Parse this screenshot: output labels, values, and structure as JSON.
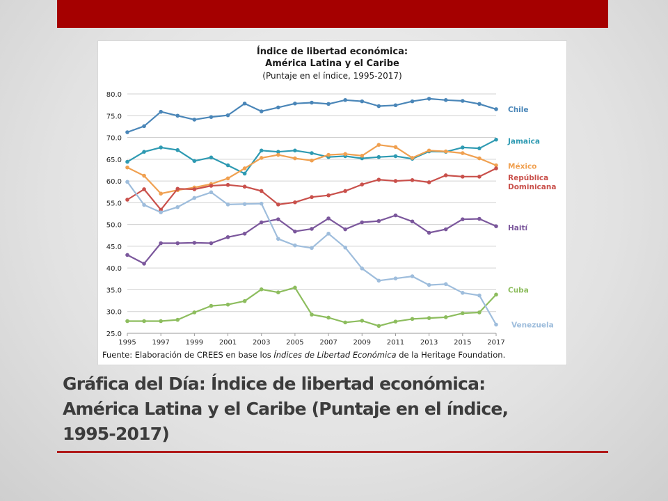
{
  "slide": {
    "title_lines": [
      "Gráfica del Día: Índice de libertad económica:",
      "América Latina y el Caribe (Puntaje en el índice,",
      "1995-2017)"
    ]
  },
  "colors": {
    "accent_bar": "#a50000",
    "rule": "#b01a1a"
  },
  "chart_data": {
    "type": "line",
    "title": "Índice de libertad económica:",
    "subtitle": "América Latina y el Caribe",
    "subtitle2": "(Puntaje en el índice, 1995-2017)",
    "source_prefix": "Fuente: Elaboración de CREES en base los ",
    "source_italic": "Índices de Libertad Económica",
    "source_suffix": " de la Heritage Foundation.",
    "xlabel": "",
    "ylabel": "",
    "ylim": [
      25,
      80
    ],
    "yticks": [
      "25.0",
      "30.0",
      "35.0",
      "40.0",
      "45.0",
      "50.0",
      "55.0",
      "60.0",
      "65.0",
      "70.0",
      "75.0",
      "80.0"
    ],
    "xticks": [
      "1995",
      "1997",
      "1999",
      "2001",
      "2003",
      "2005",
      "2007",
      "2009",
      "2011",
      "2013",
      "2015",
      "2017"
    ],
    "x": [
      1995,
      1996,
      1997,
      1998,
      1999,
      2000,
      2001,
      2002,
      2003,
      2004,
      2005,
      2006,
      2007,
      2008,
      2009,
      2010,
      2011,
      2012,
      2013,
      2014,
      2015,
      2016,
      2017
    ],
    "grid": true,
    "series": [
      {
        "name": "Chile",
        "label_lines": [
          "Chile"
        ],
        "color": "#4a86b8",
        "values": [
          71.2,
          72.6,
          75.9,
          75.0,
          74.1,
          74.7,
          75.1,
          77.8,
          76.0,
          76.9,
          77.8,
          78.0,
          77.7,
          78.6,
          78.3,
          77.2,
          77.4,
          78.3,
          78.9,
          78.6,
          78.4,
          77.7,
          76.5
        ]
      },
      {
        "name": "Jamaica",
        "label_lines": [
          "Jamaica"
        ],
        "color": "#2e9ab2",
        "values": [
          64.4,
          66.7,
          67.7,
          67.1,
          64.6,
          65.4,
          63.6,
          61.7,
          67.0,
          66.7,
          67.0,
          66.4,
          65.5,
          65.7,
          65.2,
          65.5,
          65.7,
          65.1,
          66.8,
          66.7,
          67.7,
          67.5,
          69.5
        ]
      },
      {
        "name": "México",
        "label_lines": [
          "México"
        ],
        "color": "#f0a050",
        "values": [
          63.1,
          61.2,
          57.1,
          57.9,
          58.5,
          59.3,
          60.6,
          62.9,
          65.3,
          66.0,
          65.2,
          64.7,
          66.0,
          66.2,
          65.8,
          68.3,
          67.8,
          65.3,
          67.0,
          66.8,
          66.4,
          65.2,
          63.6
        ]
      },
      {
        "name": "República Dominicana",
        "label_lines": [
          "República",
          "Dominicana"
        ],
        "color": "#c9504b",
        "values": [
          55.7,
          58.1,
          53.4,
          58.2,
          58.1,
          58.9,
          59.1,
          58.7,
          57.7,
          54.6,
          55.1,
          56.3,
          56.7,
          57.7,
          59.2,
          60.3,
          60.0,
          60.2,
          59.7,
          61.3,
          61.0,
          61.0,
          62.9
        ]
      },
      {
        "name": "Haití",
        "label_lines": [
          "Haití"
        ],
        "color": "#7b579c",
        "values": [
          43.0,
          41.0,
          45.7,
          45.7,
          45.8,
          45.7,
          47.1,
          47.9,
          50.5,
          51.2,
          48.4,
          49.0,
          51.4,
          48.9,
          50.5,
          50.8,
          52.1,
          50.7,
          48.1,
          48.9,
          51.2,
          51.3,
          49.6
        ]
      },
      {
        "name": "Cuba",
        "label_lines": [
          "Cuba"
        ],
        "color": "#8dbd5e",
        "values": [
          27.8,
          27.8,
          27.8,
          28.1,
          29.8,
          31.3,
          31.6,
          32.4,
          35.1,
          34.4,
          35.5,
          29.3,
          28.6,
          27.5,
          27.9,
          26.7,
          27.7,
          28.3,
          28.5,
          28.7,
          29.6,
          29.8,
          33.9
        ]
      },
      {
        "name": "Venezuela",
        "label_lines": [
          "Venezuela"
        ],
        "color": "#9ebddc",
        "values": [
          59.8,
          54.5,
          52.8,
          54.0,
          56.1,
          57.4,
          54.6,
          54.7,
          54.8,
          46.7,
          45.2,
          44.6,
          47.9,
          44.7,
          39.9,
          37.1,
          37.6,
          38.1,
          36.1,
          36.3,
          34.3,
          33.7,
          27.0
        ]
      }
    ]
  }
}
